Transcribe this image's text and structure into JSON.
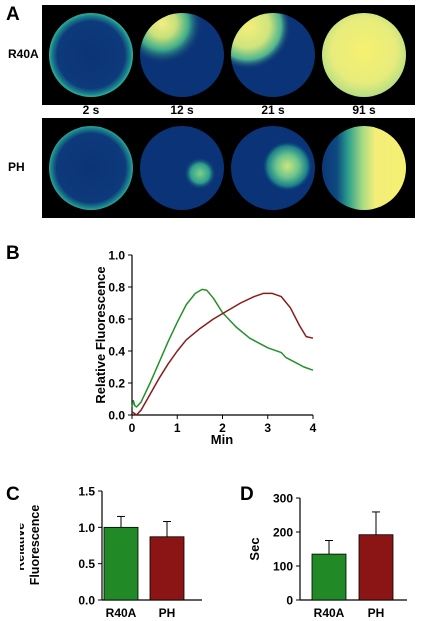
{
  "panels": {
    "a": {
      "letter": "A",
      "rows": [
        {
          "label": "R40A"
        },
        {
          "label": "PH"
        }
      ],
      "times": [
        "2 s",
        "12 s",
        "21 s",
        "91 s"
      ]
    },
    "b": {
      "letter": "B"
    },
    "c": {
      "letter": "C"
    },
    "d": {
      "letter": "D"
    }
  },
  "colors": {
    "cell_background": "#0b3377",
    "fluor_low": "#1f9e8c",
    "fluor_mid": "#7ed18c",
    "fluor_high": "#f4f07a",
    "green_series": "#24912a",
    "red_series": "#8b1a1a"
  },
  "chart_data": [
    {
      "id": "B",
      "type": "line",
      "xlabel": "Min",
      "ylabel": "Relative Fluorescence",
      "xlim": [
        0,
        4
      ],
      "ylim": [
        0,
        1.0
      ],
      "xticks": [
        "0",
        "1",
        "2",
        "3",
        "4"
      ],
      "yticks": [
        "0.0",
        "0.2",
        "0.4",
        "0.6",
        "0.8",
        "1.0"
      ],
      "series": [
        {
          "color": "#24912a",
          "x": [
            0,
            0.03,
            0.06,
            0.1,
            0.2,
            0.4,
            0.6,
            0.8,
            1.0,
            1.2,
            1.4,
            1.55,
            1.65,
            1.8,
            2.0,
            2.3,
            2.6,
            3.0,
            3.3,
            3.4,
            3.6,
            3.8,
            4.0
          ],
          "y": [
            0.05,
            0.09,
            0.06,
            0.05,
            0.08,
            0.2,
            0.33,
            0.46,
            0.58,
            0.69,
            0.76,
            0.785,
            0.78,
            0.73,
            0.64,
            0.55,
            0.48,
            0.42,
            0.39,
            0.36,
            0.33,
            0.3,
            0.28
          ]
        },
        {
          "color": "#8b1a1a",
          "x": [
            0,
            0.05,
            0.1,
            0.2,
            0.4,
            0.6,
            0.8,
            1.0,
            1.2,
            1.5,
            1.8,
            2.1,
            2.4,
            2.7,
            2.9,
            3.1,
            3.3,
            3.5,
            3.7,
            3.85,
            4.0
          ],
          "y": [
            0.02,
            0.01,
            0.0,
            0.03,
            0.13,
            0.23,
            0.32,
            0.4,
            0.47,
            0.54,
            0.6,
            0.65,
            0.7,
            0.74,
            0.76,
            0.76,
            0.74,
            0.67,
            0.56,
            0.49,
            0.48
          ]
        }
      ]
    },
    {
      "id": "C",
      "type": "bar",
      "ylabel": "Relative\nFluorescence",
      "categories": [
        "R40A",
        "PH"
      ],
      "values": [
        1.0,
        0.87
      ],
      "errors": [
        0.15,
        0.21
      ],
      "colors": [
        "#218a26",
        "#8b1515"
      ],
      "ylim": [
        0,
        1.5
      ],
      "yticks": [
        "0.0",
        "0.5",
        "1.0",
        "1.5"
      ]
    },
    {
      "id": "D",
      "type": "bar",
      "ylabel": "Sec",
      "categories": [
        "R40A",
        "PH"
      ],
      "values": [
        135,
        192
      ],
      "errors": [
        40,
        67
      ],
      "colors": [
        "#218a26",
        "#8b1515"
      ],
      "ylim": [
        0,
        300
      ],
      "yticks": [
        "0",
        "100",
        "200",
        "300"
      ]
    }
  ]
}
